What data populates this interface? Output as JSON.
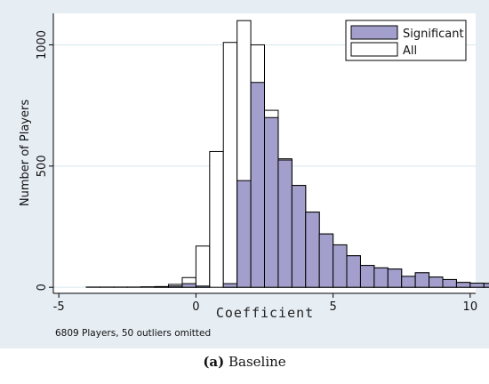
{
  "chart_data": {
    "type": "bar",
    "bin_width": 0.5,
    "x_ticks": [
      -5,
      0,
      5,
      10
    ],
    "y_ticks": [
      0,
      500,
      1000
    ],
    "xlim": [
      -5.2,
      10.2
    ],
    "ylim": [
      -25,
      1130
    ],
    "xlabel": "Coefficient",
    "ylabel": "Number of Players",
    "grid": "horizontal",
    "legend_position": "top-right",
    "series": [
      {
        "name": "All",
        "color": "#ffffff",
        "bins": [
          {
            "x": -3.75,
            "y": 1
          },
          {
            "x": -3.25,
            "y": 1
          },
          {
            "x": -2.75,
            "y": 1
          },
          {
            "x": -2.25,
            "y": 1
          },
          {
            "x": -1.75,
            "y": 2
          },
          {
            "x": -1.25,
            "y": 3
          },
          {
            "x": -0.75,
            "y": 12
          },
          {
            "x": -0.25,
            "y": 40
          },
          {
            "x": 0.25,
            "y": 170
          },
          {
            "x": 0.75,
            "y": 560
          },
          {
            "x": 1.25,
            "y": 1010
          },
          {
            "x": 1.75,
            "y": 1100
          },
          {
            "x": 2.25,
            "y": 1000
          },
          {
            "x": 2.75,
            "y": 730
          },
          {
            "x": 3.25,
            "y": 530
          },
          {
            "x": 3.75,
            "y": 420
          },
          {
            "x": 4.25,
            "y": 310
          },
          {
            "x": 4.75,
            "y": 220
          },
          {
            "x": 5.25,
            "y": 175
          },
          {
            "x": 5.75,
            "y": 130
          },
          {
            "x": 6.25,
            "y": 90
          },
          {
            "x": 6.75,
            "y": 80
          },
          {
            "x": 7.25,
            "y": 75
          },
          {
            "x": 7.75,
            "y": 45
          },
          {
            "x": 8.25,
            "y": 60
          },
          {
            "x": 8.75,
            "y": 42
          },
          {
            "x": 9.25,
            "y": 32
          },
          {
            "x": 9.75,
            "y": 20
          },
          {
            "x": 10.25,
            "y": 17
          },
          {
            "x": 10.75,
            "y": 16
          }
        ]
      },
      {
        "name": "Significant",
        "color": "#a29fcc",
        "bins": [
          {
            "x": -1.75,
            "y": 0
          },
          {
            "x": -1.25,
            "y": 2
          },
          {
            "x": -0.75,
            "y": 5
          },
          {
            "x": -0.25,
            "y": 15
          },
          {
            "x": 0.25,
            "y": 5
          },
          {
            "x": 0.75,
            "y": 0
          },
          {
            "x": 1.25,
            "y": 15
          },
          {
            "x": 1.75,
            "y": 440
          },
          {
            "x": 2.25,
            "y": 845
          },
          {
            "x": 2.75,
            "y": 700
          },
          {
            "x": 3.25,
            "y": 525
          },
          {
            "x": 3.75,
            "y": 420
          },
          {
            "x": 4.25,
            "y": 310
          },
          {
            "x": 4.75,
            "y": 220
          },
          {
            "x": 5.25,
            "y": 175
          },
          {
            "x": 5.75,
            "y": 130
          },
          {
            "x": 6.25,
            "y": 90
          },
          {
            "x": 6.75,
            "y": 80
          },
          {
            "x": 7.25,
            "y": 75
          },
          {
            "x": 7.75,
            "y": 45
          },
          {
            "x": 8.25,
            "y": 60
          },
          {
            "x": 8.75,
            "y": 42
          },
          {
            "x": 9.25,
            "y": 32
          },
          {
            "x": 9.75,
            "y": 20
          },
          {
            "x": 10.25,
            "y": 17
          },
          {
            "x": 10.75,
            "y": 16
          }
        ]
      }
    ]
  },
  "note": "6809 Players, 50 outliers omitted",
  "caption": {
    "label": "(a)",
    "text": " Baseline"
  },
  "colors": {
    "figure_background": "#e6edf3",
    "plot_background": "#ffffff",
    "grid": "#d6e6ef",
    "significant_fill": "#a29fcc",
    "bar_outline": "#000000"
  }
}
